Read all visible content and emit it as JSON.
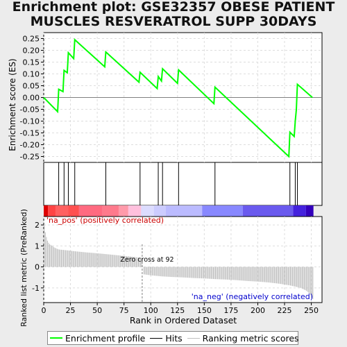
{
  "title_lines": [
    "Enrichment plot: GSE32357 OBESE PATIENT",
    "MUSCLES RESVERATROL SUPP 30DAYS"
  ],
  "colors": {
    "enrichment": "#00ff00",
    "hits": "#000000",
    "ranking": "#bebebe",
    "pos_label": "#cc0000",
    "neg_label": "#0000cc",
    "zero_line": "#808080"
  },
  "legend": {
    "enrichment_label": "Enrichment profile",
    "hits_label": "Hits",
    "ranking_label": "Ranking metric scores"
  },
  "chart_data": {
    "type": "line",
    "xlabel": "Rank in Ordered Dataset",
    "xlim": [
      0,
      260
    ],
    "xticks": [
      0,
      25,
      50,
      75,
      100,
      125,
      150,
      175,
      200,
      225,
      250
    ],
    "enrichment_panel": {
      "ylabel": "Enrichment score (ES)",
      "ylim": [
        -0.275,
        0.275
      ],
      "yticks": [
        "0.25",
        "0.20",
        "0.15",
        "0.10",
        "0.05",
        "0.00",
        "-0.05",
        "-0.10",
        "-0.15",
        "-0.20",
        "-0.25"
      ],
      "ytick_values": [
        0.25,
        0.2,
        0.15,
        0.1,
        0.05,
        0.0,
        -0.05,
        -0.1,
        -0.15,
        -0.2,
        -0.25
      ],
      "x": [
        0,
        13,
        14,
        18,
        19,
        22,
        23,
        28,
        29,
        57,
        58,
        89,
        90,
        106,
        107,
        110,
        111,
        125,
        126,
        159,
        160,
        229,
        230,
        234,
        235,
        236,
        237,
        251
      ],
      "y": [
        0.0,
        -0.06,
        0.035,
        0.025,
        0.115,
        0.105,
        0.19,
        0.165,
        0.245,
        0.13,
        0.193,
        0.065,
        0.107,
        0.038,
        0.089,
        0.07,
        0.122,
        0.06,
        0.117,
        -0.026,
        0.044,
        -0.25,
        -0.147,
        -0.165,
        -0.1,
        -0.052,
        0.056,
        0.0
      ]
    },
    "hits": [
      14,
      19,
      23,
      29,
      58,
      90,
      107,
      111,
      126,
      160,
      230,
      235,
      237
    ],
    "ranking_panel": {
      "ylabel": "Ranked list metric (PreRanked)",
      "ylim": [
        -1.7,
        2.4
      ],
      "yticks": [
        "2",
        "1",
        "0",
        "-1"
      ],
      "ytick_values": [
        2,
        1,
        0,
        -1
      ],
      "n": 252,
      "zero_cross": 92,
      "zero_cross_label": "Zero cross at 92",
      "pos_label": "'na_pos' (positively correlated)",
      "neg_label": "'na_neg' (negatively correlated)",
      "profile_x": [
        0,
        1,
        2,
        3,
        5,
        8,
        10,
        14,
        20,
        30,
        40,
        50,
        60,
        70,
        80,
        90,
        92,
        93,
        100,
        110,
        120,
        130,
        140,
        150,
        160,
        170,
        180,
        190,
        200,
        210,
        220,
        230,
        240,
        245,
        248,
        250,
        252
      ],
      "profile_y": [
        2.35,
        1.75,
        1.55,
        1.3,
        1.1,
        1.0,
        0.92,
        0.83,
        0.8,
        0.74,
        0.69,
        0.65,
        0.6,
        0.55,
        0.5,
        0.44,
        0.38,
        -0.35,
        -0.4,
        -0.45,
        -0.48,
        -0.5,
        -0.53,
        -0.55,
        -0.58,
        -0.6,
        -0.63,
        -0.67,
        -0.7,
        -0.74,
        -0.8,
        -0.88,
        -1.0,
        -1.12,
        -1.25,
        -1.4,
        -1.58
      ]
    },
    "color_bar": {
      "boundaries": [
        0,
        4,
        11,
        23,
        33,
        55,
        70,
        79,
        91,
        103,
        114,
        148,
        186,
        233,
        245,
        252
      ],
      "colors": [
        "#dd0000",
        "#ff4444",
        "#ff6060",
        "#ff5050",
        "#ff6a80",
        "#ff7a8c",
        "#ff9aaa",
        "#ffc0dd",
        "#dcdcff",
        "#ccccff",
        "#bbbbff",
        "#8888ff",
        "#6a5aee",
        "#4422dd",
        "#3300bb"
      ]
    }
  }
}
